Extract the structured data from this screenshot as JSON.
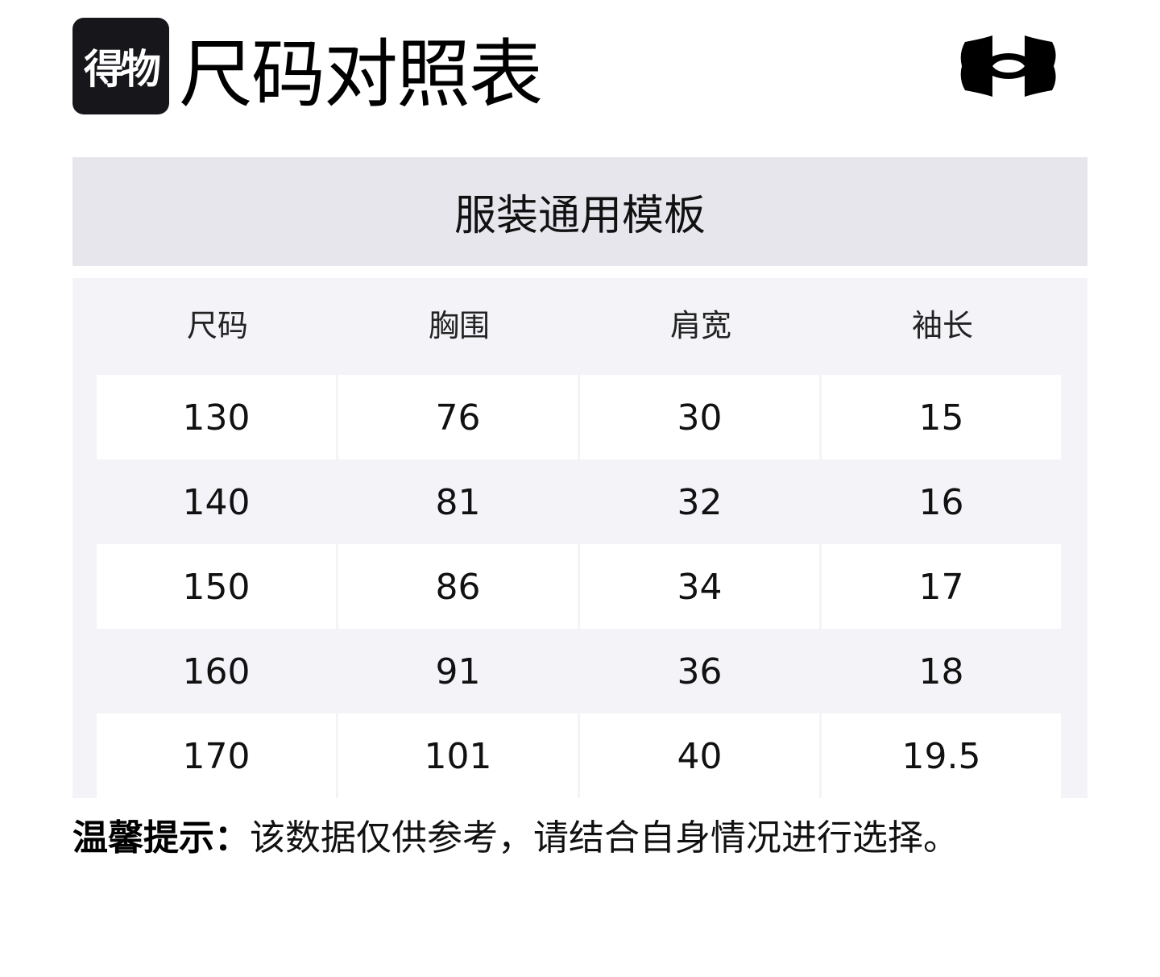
{
  "brand_logo": "得物",
  "title": "尺码对照表",
  "ua_logo": "under-armour-logo",
  "template_title": "服装通用模板",
  "table": {
    "headers": [
      "尺码",
      "胸围",
      "肩宽",
      "袖长"
    ],
    "rows": [
      [
        "130",
        "76",
        "30",
        "15"
      ],
      [
        "140",
        "81",
        "32",
        "16"
      ],
      [
        "150",
        "86",
        "34",
        "17"
      ],
      [
        "160",
        "91",
        "36",
        "18"
      ],
      [
        "170",
        "101",
        "40",
        "19.5"
      ]
    ]
  },
  "note": {
    "label": "温馨提示：",
    "text": "该数据仅供参考，请结合自身情况进行选择。"
  },
  "colors": {
    "template_bg": "#e6e6ec",
    "table_bg": "#f4f4f8",
    "brand_bg": "#16161b"
  }
}
